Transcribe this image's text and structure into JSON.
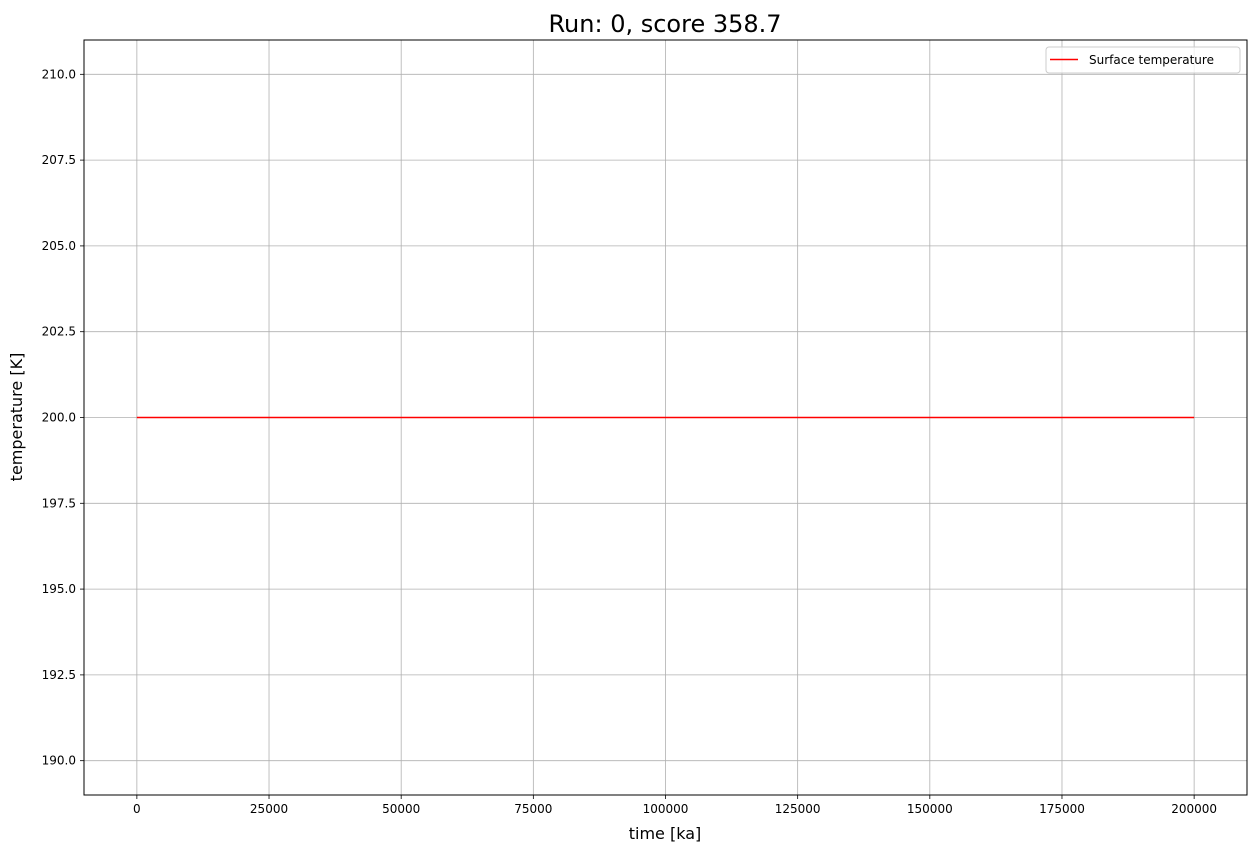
{
  "chart_data": {
    "type": "line",
    "title": "Run: 0, score 358.7",
    "xlabel": "time [ka]",
    "ylabel": "temperature [K]",
    "xlim": [
      -10000,
      210000
    ],
    "ylim": [
      189,
      211
    ],
    "xticks": [
      0,
      25000,
      50000,
      75000,
      100000,
      125000,
      150000,
      175000,
      200000
    ],
    "xtick_labels": [
      "0",
      "25000",
      "50000",
      "75000",
      "100000",
      "125000",
      "150000",
      "175000",
      "200000"
    ],
    "yticks": [
      190.0,
      192.5,
      195.0,
      197.5,
      200.0,
      202.5,
      205.0,
      207.5,
      210.0
    ],
    "ytick_labels": [
      "190.0",
      "192.5",
      "195.0",
      "197.5",
      "200.0",
      "202.5",
      "205.0",
      "207.5",
      "210.0"
    ],
    "grid": true,
    "legend_position": "top-right",
    "series": [
      {
        "name": "Surface temperature",
        "color": "#ff0000",
        "x": [
          0,
          200000
        ],
        "y": [
          200.0,
          200.0
        ]
      }
    ]
  }
}
